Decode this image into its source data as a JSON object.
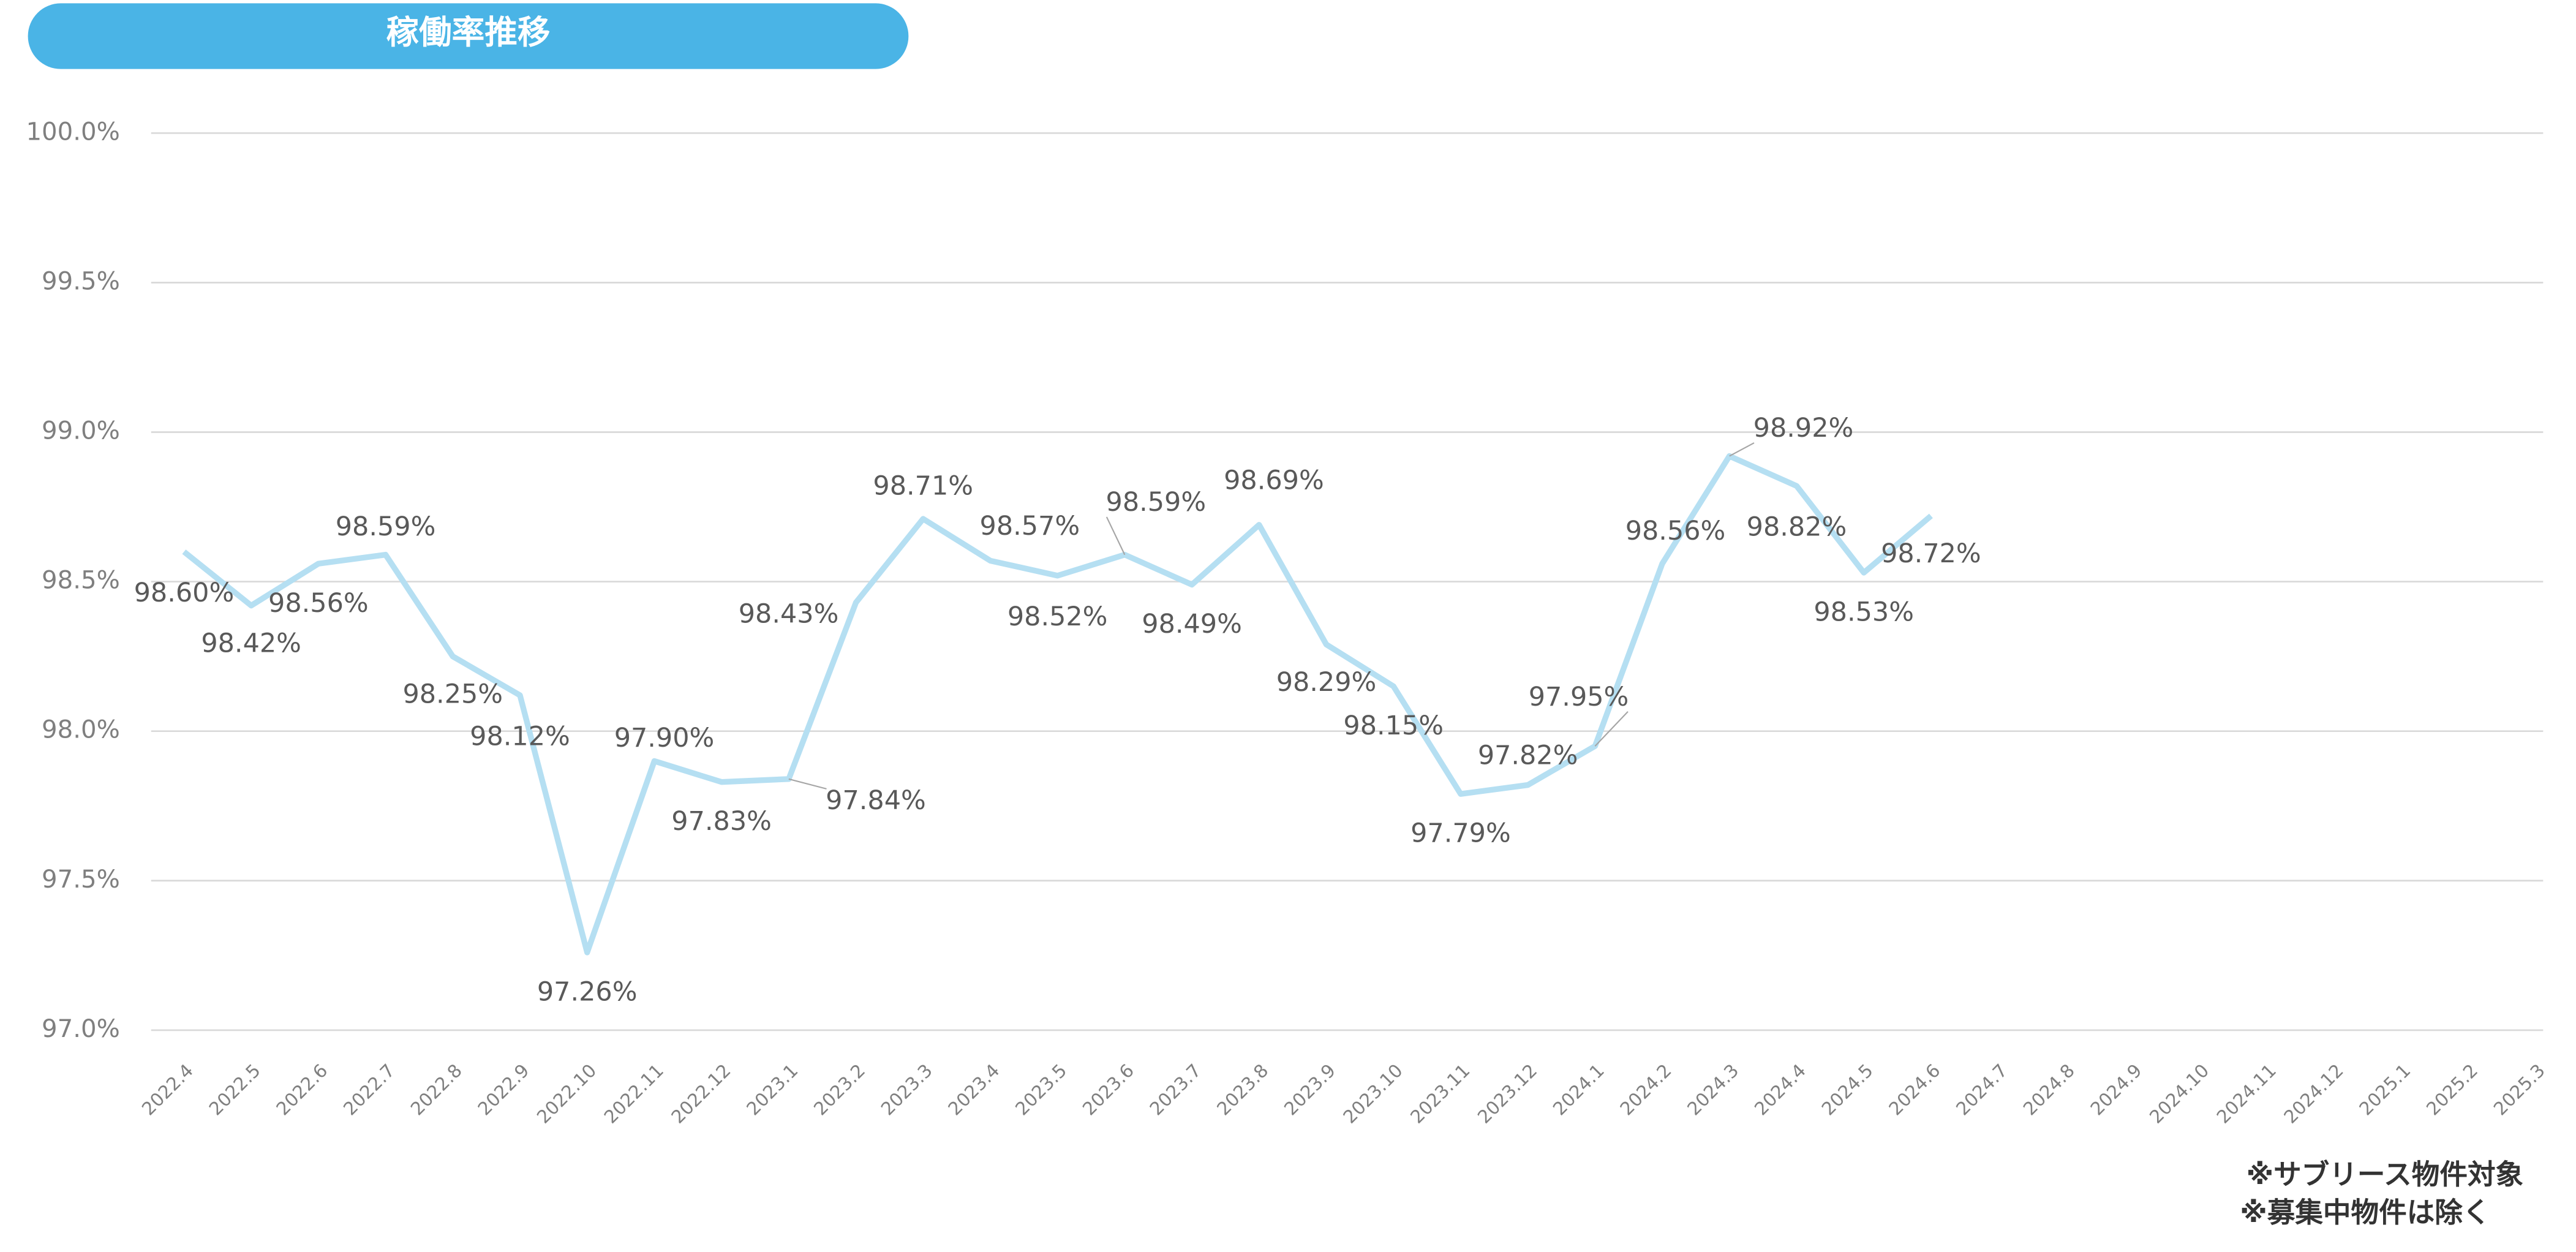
{
  "chart_data": {
    "type": "line",
    "title": "稼働率推移",
    "notes": [
      "※サブリース物件対象",
      "※募集中物件は除く"
    ],
    "categories": [
      "2022.4",
      "2022.5",
      "2022.6",
      "2022.7",
      "2022.8",
      "2022.9",
      "2022.10",
      "2022.11",
      "2022.12",
      "2023.1",
      "2023.2",
      "2023.3",
      "2023.4",
      "2023.5",
      "2023.6",
      "2023.7",
      "2023.8",
      "2023.9",
      "2023.10",
      "2023.11",
      "2023.12",
      "2024.1",
      "2024.2",
      "2024.3",
      "2024.4",
      "2024.5",
      "2024.6",
      "2024.7",
      "2024.8",
      "2024.9",
      "2024.10",
      "2024.11",
      "2024.12",
      "2025.1",
      "2025.2",
      "2025.3"
    ],
    "series": [
      {
        "name": "稼働率",
        "color": "#b5dff2",
        "values": [
          98.6,
          98.42,
          98.56,
          98.59,
          98.25,
          98.12,
          97.26,
          97.9,
          97.83,
          97.84,
          98.43,
          98.71,
          98.57,
          98.52,
          98.59,
          98.49,
          98.69,
          98.29,
          98.15,
          97.79,
          97.82,
          97.95,
          98.56,
          98.92,
          98.82,
          98.53,
          98.72,
          null,
          null,
          null,
          null,
          null,
          null,
          null,
          null,
          null
        ],
        "value_labels": [
          "98.60%",
          "98.42%",
          "98.56%",
          "98.59%",
          "98.25%",
          "98.12%",
          "97.26%",
          "97.90%",
          "97.83%",
          "97.84%",
          "98.43%",
          "98.71%",
          "98.57%",
          "98.52%",
          "98.59%",
          "98.49%",
          "98.69%",
          "98.29%",
          "98.15%",
          "97.79%",
          "97.82%",
          "97.95%",
          "98.56%",
          "98.92%",
          "98.82%",
          "98.53%",
          "98.72%",
          null,
          null,
          null,
          null,
          null,
          null,
          null,
          null,
          null
        ]
      }
    ],
    "ylim": [
      97,
      100
    ],
    "yticks": [
      {
        "value": 97,
        "label": "97.0%"
      },
      {
        "value": 97.5,
        "label": "97.5%"
      },
      {
        "value": 98,
        "label": "98.0%"
      },
      {
        "value": 98.5,
        "label": "98.5%"
      },
      {
        "value": 99,
        "label": "99.0%"
      },
      {
        "value": 99.5,
        "label": "99.5%"
      },
      {
        "value": 100,
        "label": "100.0%"
      }
    ],
    "grid": true
  }
}
